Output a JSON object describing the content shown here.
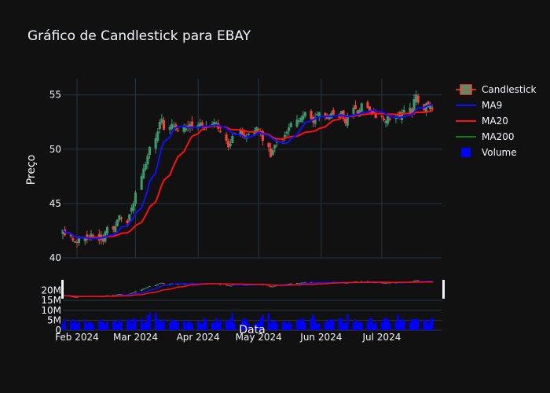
{
  "chart_data": {
    "type": "candlestick",
    "title": "Gráfico de Candlestick para EBAY",
    "xlabel": "Data",
    "ylabel": "Preço",
    "x_ticks": [
      "Feb 2024",
      "Mar 2024",
      "Apr 2024",
      "May 2024",
      "Jun 2024",
      "Jul 2024"
    ],
    "price_axis": {
      "ylim": [
        40,
        56.5
      ],
      "ticks": [
        40,
        45,
        50,
        55
      ]
    },
    "volume_axis": {
      "ticks": [
        0,
        5,
        10,
        15,
        20
      ],
      "tick_labels": [
        "0",
        "5M",
        "10M",
        "15M",
        "20M"
      ]
    },
    "legend": {
      "placement": "top-right",
      "items": [
        {
          "name": "Candlestick",
          "kind": "candle",
          "color": "#2ca02c"
        },
        {
          "name": "MA9",
          "kind": "line",
          "color": "#1010ff"
        },
        {
          "name": "MA20",
          "kind": "line",
          "color": "#ff1010"
        },
        {
          "name": "MA200",
          "kind": "line",
          "color": "#0a7d0a"
        },
        {
          "name": "Volume",
          "kind": "square",
          "color": "#0000ff"
        }
      ]
    },
    "colors": {
      "increasing": "#3d9970",
      "decreasing": "#ff4136",
      "background": "#111111",
      "grid": "#283442",
      "volume": "#0000ff"
    },
    "grid": true,
    "series": {
      "start_date": "2024-01-25",
      "close": [
        42.6,
        42.1,
        42.0,
        41.6,
        41.5,
        41.4,
        41.8,
        41.9,
        41.7,
        41.9,
        42.2,
        42.0,
        41.6,
        42.1,
        41.5,
        42.4,
        42.8,
        42.6,
        42.9,
        43.5,
        43.9,
        43.7,
        43.2,
        44.0,
        44.6,
        45.0,
        46.0,
        47.5,
        48.2,
        48.6,
        49.4,
        50.2,
        51.0,
        51.6,
        52.5,
        52.8,
        51.8,
        52.0,
        52.3,
        52.1,
        51.8,
        51.7,
        52.0,
        51.9,
        52.1,
        52.3,
        52.0,
        52.2,
        52.4,
        52.2,
        51.8,
        52.1,
        52.3,
        52.5,
        52.4,
        51.9,
        51.6,
        50.8,
        50.2,
        50.5,
        51.2,
        51.5,
        51.8,
        51.3,
        51.0,
        51.1,
        51.4,
        51.7,
        52.0,
        51.8,
        51.5,
        50.8,
        50.2,
        49.3,
        49.9,
        50.4,
        50.7,
        50.9,
        51.3,
        51.6,
        52.0,
        52.4,
        52.7,
        52.6,
        52.9,
        53.1,
        53.4,
        52.8,
        52.5,
        52.9,
        53.2,
        53.4,
        53.0,
        52.8,
        53.1,
        53.3,
        53.2,
        52.9,
        53.5,
        52.8,
        52.4,
        53.1,
        53.8,
        53.7,
        53.3,
        53.6,
        54.2,
        53.8,
        53.5,
        53.2,
        53.4,
        52.9,
        53.0,
        52.7,
        52.6,
        53.1,
        52.8,
        52.9,
        53.2,
        52.9,
        53.4,
        53.6,
        53.8,
        53.3,
        54.6,
        55.0,
        54.3,
        53.6,
        54.2,
        53.9,
        54.0,
        53.7
      ]
    }
  }
}
